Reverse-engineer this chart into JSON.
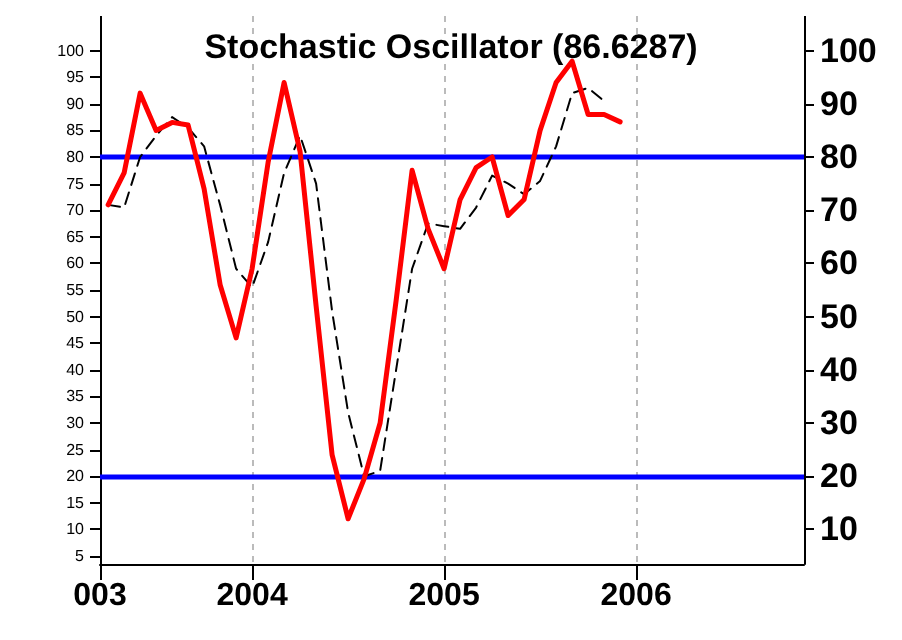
{
  "chart_data": {
    "type": "line",
    "title": "Stochastic Oscillator (86.6287)",
    "x": [
      "2003-04",
      "2003-05",
      "2003-06",
      "2003-07",
      "2003-08",
      "2003-09",
      "2003-10",
      "2003-11",
      "2003-12",
      "2004-01",
      "2004-02",
      "2004-03",
      "2004-04",
      "2004-05",
      "2004-06",
      "2004-07",
      "2004-08",
      "2004-09",
      "2004-10",
      "2004-11",
      "2004-12",
      "2005-01",
      "2005-02",
      "2005-03",
      "2005-04",
      "2005-05",
      "2005-06",
      "2005-07",
      "2005-08",
      "2005-09",
      "2005-10",
      "2005-11",
      "2005-12"
    ],
    "series": [
      {
        "color": "#ff0000",
        "line_style": "solid",
        "values": [
          71,
          77,
          92,
          85,
          86.5,
          86,
          74,
          56,
          46,
          59,
          79,
          94,
          81,
          52,
          24,
          12,
          19.5,
          30,
          53,
          77.5,
          66.5,
          59,
          72,
          78,
          80,
          69,
          72,
          85,
          94,
          98,
          88,
          88,
          86.6
        ]
      },
      {
        "color": "#000000",
        "line_style": "dashed",
        "values": [
          71,
          70.5,
          80,
          84,
          87.5,
          85.5,
          82,
          71,
          59,
          55.5,
          64,
          77,
          84,
          75,
          51,
          32,
          20,
          21,
          40,
          59,
          67.5,
          67,
          66.5,
          70.5,
          76.5,
          75,
          73,
          75.5,
          82,
          92,
          93,
          90.5,
          null
        ]
      }
    ],
    "xlim": [
      "2003-03-16",
      "2006-11-16"
    ],
    "xticks": [
      {
        "value": "2003-03-16",
        "label": "003"
      },
      {
        "value": "2004-01-01",
        "label": "2004"
      },
      {
        "value": "2005-01-01",
        "label": "2005"
      },
      {
        "value": "2006-01-01",
        "label": "2006"
      }
    ],
    "ylim": [
      3.5,
      106.5
    ],
    "yticks": [
      5,
      10,
      15,
      20,
      25,
      30,
      35,
      40,
      45,
      50,
      55,
      60,
      65,
      70,
      75,
      80,
      85,
      90,
      95,
      100
    ],
    "y2lim": [
      3.5,
      106.5
    ],
    "y2ticks": [
      10,
      20,
      30,
      40,
      50,
      60,
      70,
      80,
      90,
      100
    ],
    "ref_lines": [
      {
        "axis": "y",
        "value": 80,
        "color": "#0000ff"
      },
      {
        "axis": "y",
        "value": 20,
        "color": "#0000ff"
      }
    ],
    "grid": "x",
    "marker": "none"
  }
}
